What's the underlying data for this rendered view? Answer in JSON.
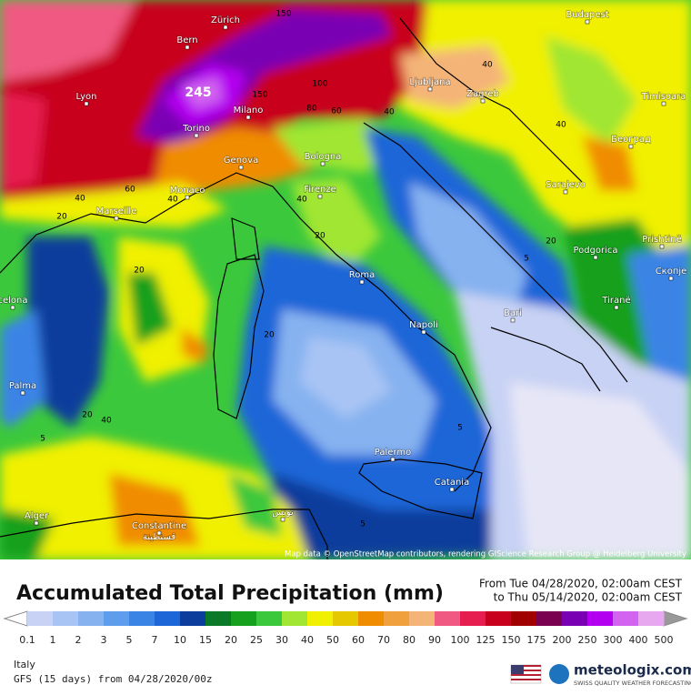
{
  "map": {
    "cities": [
      "Zürich",
      "Bern",
      "Lyon",
      "Milano",
      "Torino",
      "Genova",
      "Monaco",
      "Marseille",
      "Bologna",
      "Firenze",
      "Ljubljana",
      "Zagreb",
      "Budapest",
      "Timisoara",
      "Београд",
      "Sarajevo",
      "Podgorica",
      "Prishtinë",
      "Скопје",
      "Tiranë",
      "Roma",
      "Napoli",
      "Bari",
      "Palermo",
      "Catania",
      "Palma",
      "Alger",
      "Constantine",
      "قسنطينة",
      "تونس",
      "celona"
    ],
    "peak_label": "245",
    "contour_labels": [
      150,
      100,
      150,
      80,
      60,
      40,
      60,
      40,
      20,
      40,
      40,
      20,
      20,
      20,
      20,
      40,
      5,
      5,
      5,
      5,
      40,
      40,
      20
    ],
    "attribution": "Map data © OpenStreetMap contributors, rendering GIScience Research Group @ Heidelberg University"
  },
  "header": {
    "title": "Accumulated Total Precipitation (mm)",
    "from": "From Tue 04/28/2020, 02:00am CEST",
    "to": "to Thu 05/14/2020, 02:00am CEST"
  },
  "legend": {
    "labels": [
      0.1,
      1,
      2,
      3,
      5,
      7,
      10,
      15,
      20,
      25,
      30,
      40,
      50,
      60,
      70,
      80,
      90,
      100,
      125,
      150,
      175,
      200,
      250,
      300,
      400,
      500
    ],
    "colors": [
      "#c8d2f4",
      "#a8c4f4",
      "#86b2f0",
      "#5e9cec",
      "#3a84e6",
      "#1c66d8",
      "#0c3c9c",
      "#0a7a28",
      "#16a01e",
      "#3cc83c",
      "#a0e632",
      "#f0f000",
      "#e6c800",
      "#f08c00",
      "#f0a03c",
      "#f4b478",
      "#f05a82",
      "#e61e50",
      "#c8001e",
      "#a00000",
      "#7a0050",
      "#7a00b4",
      "#b400f0",
      "#d264f0",
      "#e8a8f0"
    ]
  },
  "footer": {
    "region": "Italy",
    "model": "GFS (15 days) from  04/28/2020/00z",
    "brand": "meteologix.com",
    "tagline": "SWISS QUALITY WEATHER FORECASTING"
  }
}
